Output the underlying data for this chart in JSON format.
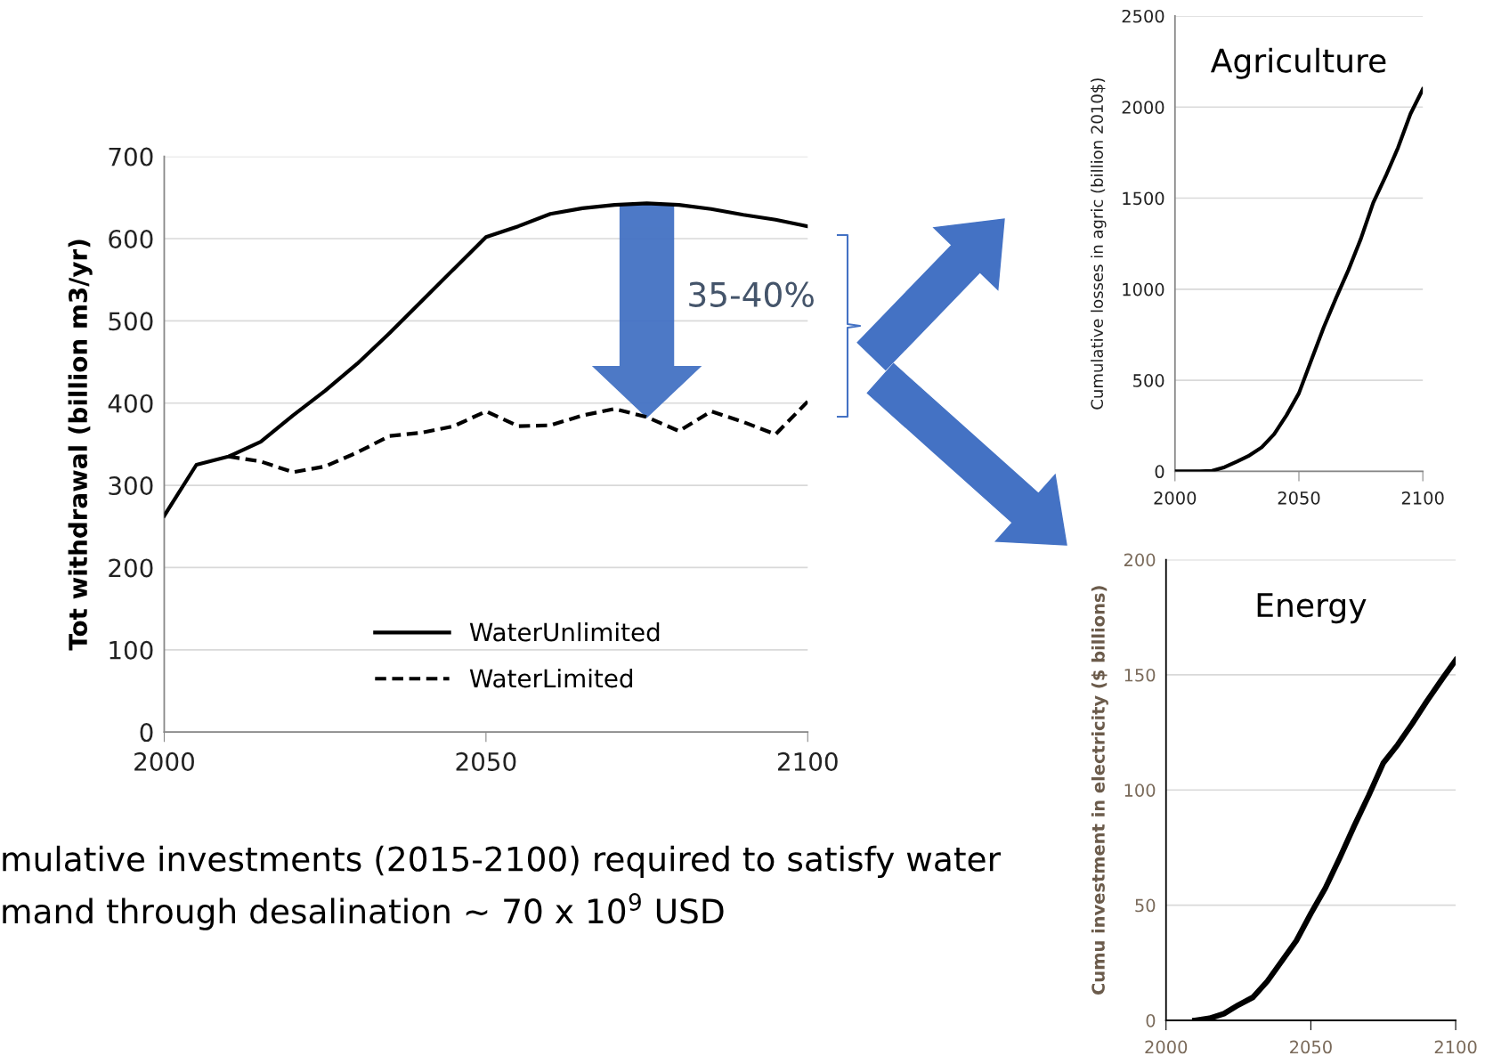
{
  "chart_data": [
    {
      "type": "line",
      "ylabel": "Tot withdrawal (billion m3/yr)",
      "xlim": [
        2000,
        2100
      ],
      "xticks": [
        2000,
        2050,
        2100
      ],
      "ylim": [
        0,
        700
      ],
      "yticks": [
        0,
        100,
        200,
        300,
        400,
        500,
        600,
        700
      ],
      "grid": "y",
      "legend": "bottom",
      "marker": "none",
      "series": [
        {
          "name": "WaterUnlimited",
          "color": "#000000",
          "line_style": "solid",
          "x": [
            2000,
            2005,
            2010,
            2015,
            2020,
            2025,
            2030,
            2035,
            2040,
            2045,
            2050,
            2055,
            2060,
            2065,
            2070,
            2075,
            2080,
            2085,
            2090,
            2095,
            2100
          ],
          "values": [
            263,
            325,
            335,
            353,
            385,
            415,
            448,
            485,
            524,
            563,
            602,
            615,
            630,
            637,
            641,
            643,
            641,
            636,
            629,
            623,
            615
          ]
        },
        {
          "name": "WaterLimited",
          "color": "#000000",
          "line_style": "dashed",
          "x": [
            2010,
            2015,
            2020,
            2025,
            2030,
            2035,
            2040,
            2045,
            2050,
            2055,
            2060,
            2065,
            2070,
            2075,
            2080,
            2085,
            2090,
            2095,
            2100
          ],
          "values": [
            335,
            329,
            316,
            323,
            340,
            360,
            364,
            372,
            390,
            372,
            373,
            385,
            393,
            383,
            366,
            390,
            377,
            362,
            402
          ]
        }
      ],
      "annotations": [
        "35-40%",
        "mulative investments (2015-2100) required to satisfy water",
        "mand through desalination ~ 70 x 10$^{9}$ USD"
      ]
    },
    {
      "type": "line",
      "title": "Agriculture",
      "ylabel": "Cumulative losses in agric (billion 2010$)",
      "xlim": [
        2000,
        2100
      ],
      "xticks": [
        2000,
        2050,
        2100
      ],
      "ylim": [
        0,
        2500
      ],
      "yticks": [
        0,
        500,
        1000,
        1500,
        2000,
        2500
      ],
      "grid": "y",
      "marker": "none",
      "series": [
        {
          "color": "#000000",
          "x": [
            2000,
            2010,
            2015,
            2020,
            2025,
            2030,
            2035,
            2040,
            2045,
            2050,
            2055,
            2060,
            2065,
            2070,
            2075,
            2080,
            2085,
            2090,
            2095,
            2100
          ],
          "values": [
            0,
            0,
            3,
            23,
            54,
            87,
            132,
            204,
            308,
            429,
            610,
            790,
            952,
            1106,
            1277,
            1475,
            1620,
            1777,
            1962,
            2098
          ]
        }
      ]
    },
    {
      "type": "line",
      "title": "Energy",
      "ylabel": "Cumu investment in electricity ($ billions)",
      "xlim": [
        2000,
        2100
      ],
      "xticks": [
        2000,
        2050,
        2100
      ],
      "ylim": [
        0,
        200
      ],
      "yticks": [
        0,
        50,
        100,
        150,
        200
      ],
      "grid": "y",
      "marker": "none",
      "series": [
        {
          "color": "#000000",
          "x": [
            2010,
            2015,
            2020,
            2025,
            2030,
            2035,
            2040,
            2045,
            2050,
            2055,
            2060,
            2065,
            2070,
            2075,
            2080,
            2085,
            2090,
            2095,
            2100
          ],
          "values": [
            0,
            0.9,
            2.9,
            6.7,
            10,
            17,
            25.8,
            34.6,
            46.4,
            57.4,
            70.6,
            84.5,
            97.7,
            111.7,
            119.7,
            128.8,
            138.5,
            147.6,
            156.4
          ]
        }
      ]
    }
  ]
}
